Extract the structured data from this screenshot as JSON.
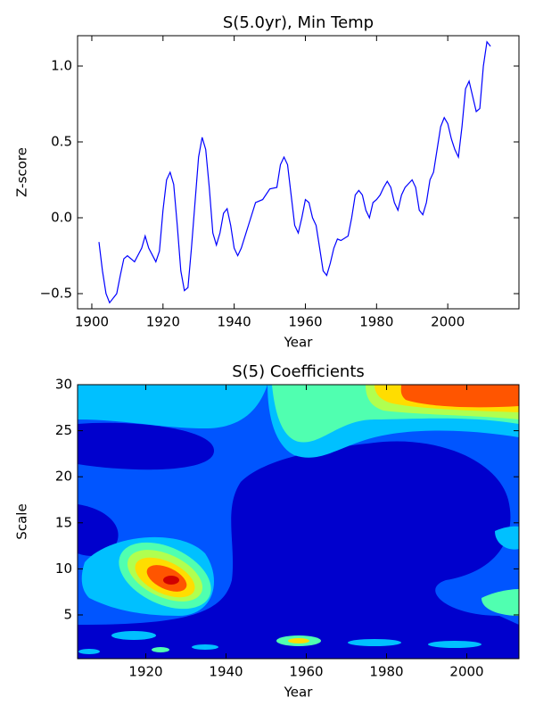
{
  "chart_data": [
    {
      "type": "line",
      "title": "S(5.0yr), Min Temp",
      "x_label": "Year",
      "y_label": "Z-score",
      "color": "#0000ff",
      "x": [
        1902,
        1903,
        1904,
        1905,
        1907,
        1908,
        1909,
        1910,
        1912,
        1914,
        1915,
        1916,
        1918,
        1919,
        1920,
        1921,
        1922,
        1923,
        1924,
        1925,
        1926,
        1927,
        1928,
        1929,
        1930,
        1931,
        1932,
        1933,
        1934,
        1935,
        1936,
        1937,
        1938,
        1939,
        1940,
        1941,
        1942,
        1944,
        1946,
        1948,
        1950,
        1952,
        1953,
        1954,
        1955,
        1956,
        1957,
        1958,
        1959,
        1960,
        1961,
        1962,
        1963,
        1964,
        1965,
        1966,
        1967,
        1968,
        1969,
        1970,
        1972,
        1973,
        1974,
        1975,
        1976,
        1977,
        1978,
        1979,
        1980,
        1981,
        1982,
        1983,
        1984,
        1985,
        1986,
        1987,
        1988,
        1990,
        1991,
        1992,
        1993,
        1994,
        1995,
        1996,
        1997,
        1998,
        1999,
        2000,
        2001,
        2002,
        2003,
        2004,
        2005,
        2006,
        2007,
        2008,
        2009,
        2010,
        2011,
        2012
      ],
      "values": [
        -0.16,
        -0.35,
        -0.5,
        -0.56,
        -0.5,
        -0.38,
        -0.27,
        -0.25,
        -0.29,
        -0.2,
        -0.12,
        -0.2,
        -0.29,
        -0.22,
        0.05,
        0.25,
        0.3,
        0.22,
        -0.05,
        -0.35,
        -0.48,
        -0.46,
        -0.2,
        0.1,
        0.4,
        0.53,
        0.45,
        0.2,
        -0.1,
        -0.18,
        -0.1,
        0.03,
        0.06,
        -0.05,
        -0.2,
        -0.25,
        -0.2,
        -0.05,
        0.1,
        0.12,
        0.19,
        0.2,
        0.35,
        0.4,
        0.35,
        0.15,
        -0.05,
        -0.1,
        0.0,
        0.12,
        0.1,
        0.0,
        -0.05,
        -0.2,
        -0.35,
        -0.38,
        -0.3,
        -0.2,
        -0.14,
        -0.15,
        -0.12,
        0.0,
        0.15,
        0.18,
        0.15,
        0.05,
        0.0,
        0.1,
        0.12,
        0.15,
        0.2,
        0.24,
        0.2,
        0.1,
        0.05,
        0.15,
        0.2,
        0.25,
        0.2,
        0.05,
        0.02,
        0.1,
        0.25,
        0.3,
        0.45,
        0.6,
        0.66,
        0.62,
        0.52,
        0.45,
        0.4,
        0.6,
        0.85,
        0.9,
        0.8,
        0.7,
        0.72,
        1.0,
        1.16,
        1.13
      ],
      "xlim": [
        1896,
        2020
      ],
      "ylim": [
        -0.6,
        1.2
      ],
      "xticks": [
        1900,
        1920,
        1940,
        1960,
        1980,
        2000
      ],
      "yticks": [
        {
          "value": -0.5,
          "label": "−0.5"
        },
        {
          "value": 0,
          "label": "0.0"
        },
        {
          "value": 0.5,
          "label": "0.5"
        },
        {
          "value": 1,
          "label": "1.0"
        }
      ]
    },
    {
      "type": "contour",
      "title": "S(5) Coefficients",
      "x_label": "Year",
      "y_label": "Scale",
      "xlim": [
        1903,
        2013
      ],
      "ylim": [
        0.25,
        30
      ],
      "xticks": [
        1920,
        1940,
        1960,
        1980,
        2000
      ],
      "yticks": [
        5,
        10,
        15,
        20,
        25,
        30
      ]
    }
  ]
}
